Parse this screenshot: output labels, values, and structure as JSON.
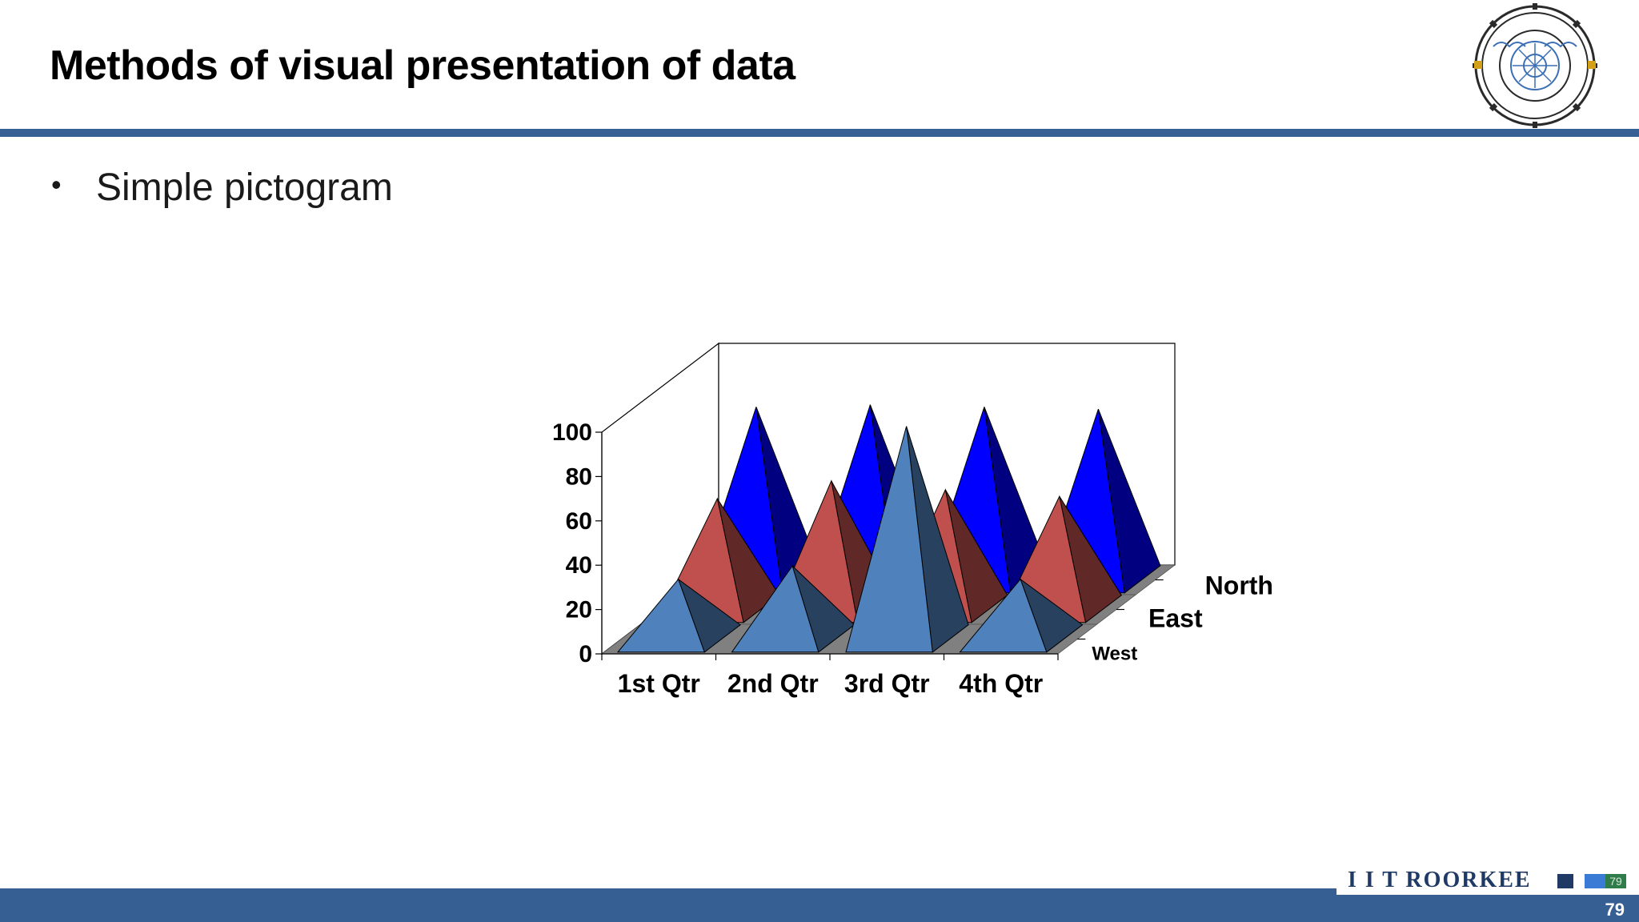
{
  "slide": {
    "title": "Methods of visual presentation of data",
    "bullet": "Simple pictogram",
    "page_number": "79",
    "brand_text": "I I T ROORKEE",
    "brand_badge": "79",
    "accent_color": "#365f93"
  },
  "chart_data": {
    "type": "3d-pyramid-bar",
    "categories": [
      "1st Qtr",
      "2nd Qtr",
      "3rd Qtr",
      "4th Qtr"
    ],
    "series": [
      {
        "name": "West",
        "values": [
          27,
          33,
          96,
          27
        ],
        "color": "#4f81bd"
      },
      {
        "name": "East",
        "values": [
          50,
          58,
          54,
          51
        ],
        "color": "#c0504d"
      },
      {
        "name": "North",
        "values": [
          78,
          79,
          78,
          77
        ],
        "color": "#0000ff"
      }
    ],
    "yticks": [
      "0",
      "20",
      "40",
      "60",
      "80",
      "100"
    ],
    "ylim": [
      0,
      100
    ],
    "floor_color": "#808080"
  }
}
